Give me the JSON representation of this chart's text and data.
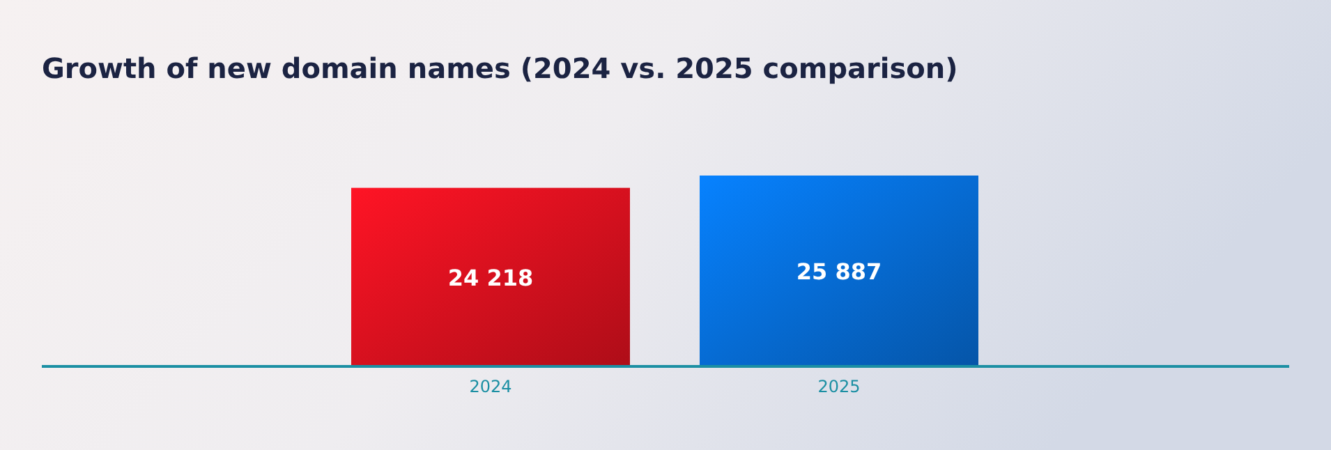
{
  "chart_data": {
    "type": "bar",
    "title": "Growth of new domain names (2024 vs. 2025 comparison)",
    "categories": [
      "2024",
      "2025"
    ],
    "values": [
      24218,
      25887
    ],
    "value_labels": [
      "24 218",
      "25 887"
    ],
    "colors": [
      "#d8101e",
      "#0669d0"
    ],
    "tick_labels": "x"
  }
}
